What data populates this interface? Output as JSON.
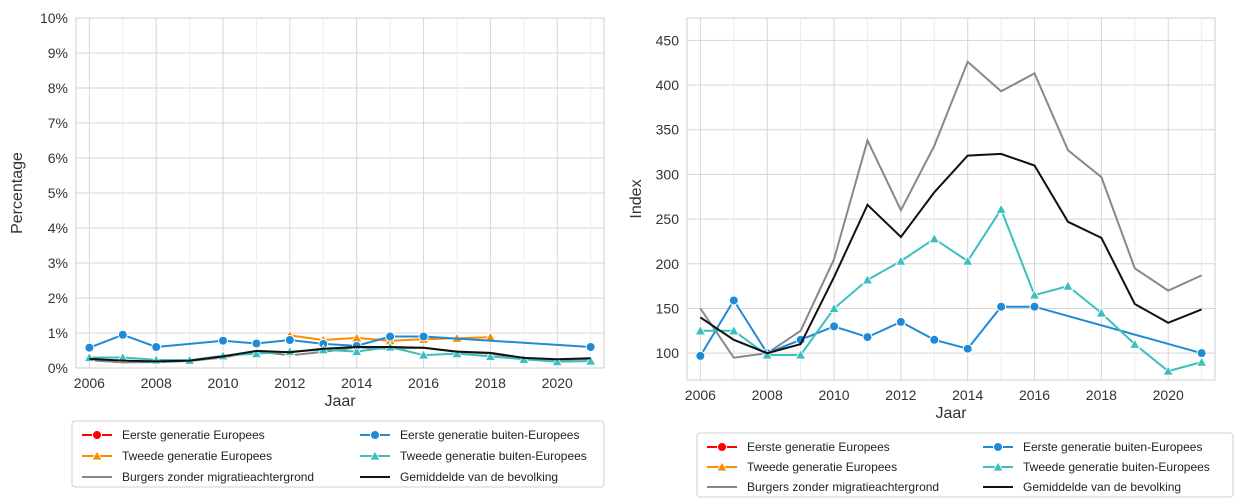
{
  "chart_data": [
    {
      "type": "line",
      "xlabel": "Jaar",
      "ylabel": "Percentage",
      "xlim": [
        2005.6,
        2021.4
      ],
      "ylim": [
        0,
        10
      ],
      "x_ticks": [
        "2006",
        "2008",
        "2010",
        "2012",
        "2014",
        "2016",
        "2018",
        "2020"
      ],
      "y_ticks": [
        "0%",
        "1%",
        "2%",
        "3%",
        "4%",
        "5%",
        "6%",
        "7%",
        "8%",
        "9%",
        "10%"
      ],
      "legend_position": "bottom",
      "series": [
        {
          "name": "Eerste generatie Europees",
          "color": "#ff0000",
          "marker": "circle",
          "x": [],
          "y": []
        },
        {
          "name": "Tweede generatie Europees",
          "color": "#ff8c00",
          "marker": "triangle",
          "x": [
            2012,
            2013,
            2014,
            2015,
            2016,
            2017,
            2018
          ],
          "y": [
            0.93,
            0.8,
            0.86,
            0.78,
            0.82,
            0.85,
            0.88
          ]
        },
        {
          "name": "Burgers zonder migratieachtergrond",
          "color": "#888888",
          "marker": "none",
          "x": [
            2006,
            2007,
            2008,
            2009,
            2010,
            2011,
            2012,
            2013,
            2014,
            2015,
            2016,
            2017,
            2018,
            2019,
            2020,
            2021
          ],
          "y": [
            0.22,
            0.16,
            0.17,
            0.2,
            0.3,
            0.48,
            0.36,
            0.46,
            0.59,
            0.55,
            0.58,
            0.46,
            0.41,
            0.27,
            0.23,
            0.26
          ]
        },
        {
          "name": "Eerste generatie buiten-Europees",
          "color": "#1f8ad6",
          "marker": "circle",
          "x": [
            2006,
            2007,
            2008,
            2010,
            2011,
            2012,
            2013,
            2014,
            2015,
            2016,
            2021
          ],
          "y": [
            0.58,
            0.95,
            0.6,
            0.78,
            0.7,
            0.8,
            0.69,
            0.63,
            0.9,
            0.9,
            0.6
          ]
        },
        {
          "name": "Tweede generatie buiten-Europees",
          "color": "#3bbfbf",
          "marker": "triangle",
          "x": [
            2006,
            2007,
            2008,
            2009,
            2010,
            2011,
            2012,
            2013,
            2014,
            2015,
            2016,
            2017,
            2018,
            2019,
            2020,
            2021
          ],
          "y": [
            0.3,
            0.3,
            0.23,
            0.22,
            0.35,
            0.41,
            0.47,
            0.52,
            0.47,
            0.6,
            0.37,
            0.41,
            0.33,
            0.25,
            0.18,
            0.2
          ]
        },
        {
          "name": "Gemiddelde van de bevolking",
          "color": "#111111",
          "marker": "none",
          "x": [
            2006,
            2007,
            2008,
            2009,
            2010,
            2011,
            2012,
            2013,
            2014,
            2015,
            2016,
            2017,
            2018,
            2019,
            2020,
            2021
          ],
          "y": [
            0.26,
            0.21,
            0.19,
            0.21,
            0.33,
            0.49,
            0.45,
            0.55,
            0.6,
            0.6,
            0.58,
            0.47,
            0.43,
            0.29,
            0.25,
            0.28
          ]
        }
      ]
    },
    {
      "type": "line",
      "xlabel": "Jaar",
      "ylabel": "Index",
      "xlim": [
        2005.6,
        2021.4
      ],
      "ylim": [
        70,
        475
      ],
      "x_ticks": [
        "2006",
        "2008",
        "2010",
        "2012",
        "2014",
        "2016",
        "2018",
        "2020"
      ],
      "y_ticks": [
        "100",
        "150",
        "200",
        "250",
        "300",
        "350",
        "400",
        "450"
      ],
      "legend_position": "bottom",
      "series": [
        {
          "name": "Eerste generatie Europees",
          "color": "#ff0000",
          "marker": "circle",
          "x": [],
          "y": []
        },
        {
          "name": "Tweede generatie Europees",
          "color": "#ff8c00",
          "marker": "triangle",
          "x": [],
          "y": []
        },
        {
          "name": "Burgers zonder migratieachtergrond",
          "color": "#888888",
          "marker": "none",
          "x": [
            2006,
            2007,
            2008,
            2009,
            2010,
            2011,
            2012,
            2013,
            2014,
            2015,
            2016,
            2017,
            2018,
            2019,
            2020,
            2021
          ],
          "y": [
            150,
            95,
            100,
            125,
            205,
            338,
            260,
            332,
            426,
            393,
            413,
            327,
            297,
            195,
            170,
            187
          ]
        },
        {
          "name": "Eerste generatie buiten-Europees",
          "color": "#1f8ad6",
          "marker": "circle",
          "x": [
            2006,
            2007,
            2008,
            2009,
            2010,
            2011,
            2012,
            2013,
            2014,
            2015,
            2016,
            2021
          ],
          "y": [
            97,
            159,
            100,
            115,
            130,
            118,
            135,
            115,
            105,
            152,
            152,
            100
          ]
        },
        {
          "name": "Tweede generatie buiten-Europees",
          "color": "#3bbfbf",
          "marker": "triangle",
          "x": [
            2006,
            2007,
            2008,
            2009,
            2010,
            2011,
            2012,
            2013,
            2014,
            2015,
            2016,
            2017,
            2018,
            2019,
            2020,
            2021
          ],
          "y": [
            125,
            125,
            98,
            98,
            150,
            182,
            203,
            228,
            203,
            261,
            165,
            175,
            145,
            110,
            80,
            90
          ]
        },
        {
          "name": "Gemiddelde van de bevolking",
          "color": "#111111",
          "marker": "none",
          "x": [
            2006,
            2007,
            2008,
            2009,
            2010,
            2011,
            2012,
            2013,
            2014,
            2015,
            2016,
            2017,
            2018,
            2019,
            2020,
            2021
          ],
          "y": [
            140,
            115,
            100,
            110,
            185,
            266,
            230,
            280,
            321,
            323,
            310,
            247,
            229,
            155,
            134,
            149
          ]
        }
      ]
    }
  ]
}
